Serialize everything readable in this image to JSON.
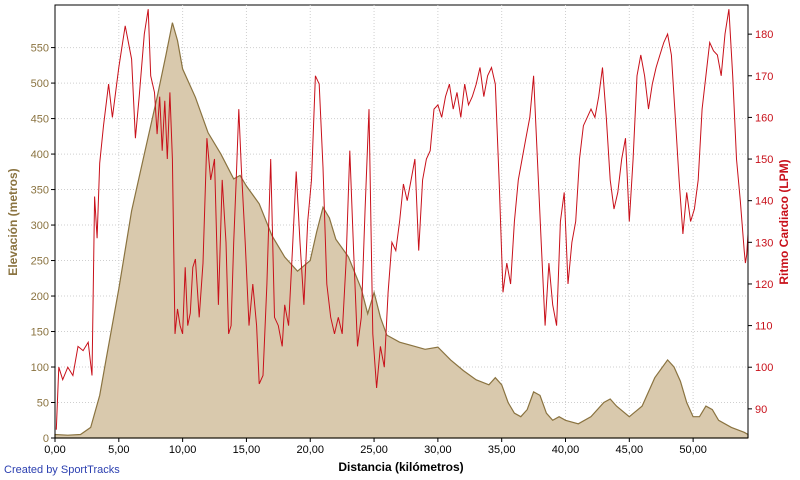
{
  "chart_data": {
    "type": "area",
    "xlabel": "Distancia (kilómetros)",
    "x_ticks": [
      "0,00",
      "5,00",
      "10,00",
      "15,00",
      "20,00",
      "25,00",
      "30,00",
      "35,00",
      "40,00",
      "45,00",
      "50,00"
    ],
    "xlim": [
      0,
      54.3
    ],
    "grid": true,
    "left_axis": {
      "label": "Elevación (metros)",
      "ticks": [
        0,
        50,
        100,
        150,
        200,
        250,
        300,
        350,
        400,
        450,
        500,
        550
      ],
      "ylim": [
        0,
        610
      ]
    },
    "right_axis": {
      "label": "Ritmo Cardiaco (LPM)",
      "ticks": [
        90,
        100,
        110,
        120,
        130,
        140,
        150,
        160,
        170,
        180
      ],
      "ylim": [
        83,
        187
      ]
    },
    "series": [
      {
        "type": "area",
        "axis": "left",
        "color": "#8a7340",
        "fill": "#d9c9ad",
        "points": [
          [
            0,
            5
          ],
          [
            1,
            4
          ],
          [
            2,
            5
          ],
          [
            2.8,
            15
          ],
          [
            3.5,
            60
          ],
          [
            4,
            110
          ],
          [
            5,
            210
          ],
          [
            6,
            320
          ],
          [
            7,
            400
          ],
          [
            8,
            480
          ],
          [
            8.7,
            540
          ],
          [
            9.2,
            585
          ],
          [
            9.6,
            560
          ],
          [
            10,
            520
          ],
          [
            11,
            480
          ],
          [
            12,
            430
          ],
          [
            13,
            400
          ],
          [
            14,
            365
          ],
          [
            14.5,
            370
          ],
          [
            15,
            355
          ],
          [
            16,
            330
          ],
          [
            17,
            285
          ],
          [
            18,
            255
          ],
          [
            19,
            235
          ],
          [
            20,
            250
          ],
          [
            20.5,
            290
          ],
          [
            21,
            325
          ],
          [
            21.5,
            310
          ],
          [
            22,
            280
          ],
          [
            23,
            255
          ],
          [
            24,
            210
          ],
          [
            24.5,
            175
          ],
          [
            25,
            205
          ],
          [
            25.5,
            170
          ],
          [
            26,
            145
          ],
          [
            27,
            135
          ],
          [
            28,
            130
          ],
          [
            29,
            125
          ],
          [
            30,
            128
          ],
          [
            31,
            110
          ],
          [
            32,
            95
          ],
          [
            33,
            82
          ],
          [
            34,
            75
          ],
          [
            34.5,
            85
          ],
          [
            35,
            75
          ],
          [
            35.5,
            50
          ],
          [
            36,
            35
          ],
          [
            36.5,
            30
          ],
          [
            37,
            40
          ],
          [
            37.5,
            65
          ],
          [
            38,
            60
          ],
          [
            38.5,
            35
          ],
          [
            39,
            25
          ],
          [
            39.5,
            30
          ],
          [
            40,
            25
          ],
          [
            41,
            20
          ],
          [
            42,
            30
          ],
          [
            43,
            50
          ],
          [
            43.5,
            55
          ],
          [
            44,
            45
          ],
          [
            45,
            30
          ],
          [
            46,
            45
          ],
          [
            47,
            85
          ],
          [
            48,
            110
          ],
          [
            48.5,
            100
          ],
          [
            49,
            80
          ],
          [
            49.5,
            50
          ],
          [
            50,
            30
          ],
          [
            50.5,
            30
          ],
          [
            51,
            45
          ],
          [
            51.5,
            40
          ],
          [
            52,
            25
          ],
          [
            53,
            15
          ],
          [
            54,
            8
          ],
          [
            54.3,
            5
          ]
        ]
      },
      {
        "type": "line",
        "axis": "right",
        "color": "#c8101a",
        "points": [
          [
            0.1,
            85
          ],
          [
            0.3,
            100
          ],
          [
            0.6,
            97
          ],
          [
            1,
            100
          ],
          [
            1.4,
            98
          ],
          [
            1.8,
            105
          ],
          [
            2.2,
            104
          ],
          [
            2.6,
            106
          ],
          [
            2.9,
            98
          ],
          [
            3.1,
            141
          ],
          [
            3.3,
            131
          ],
          [
            3.5,
            149
          ],
          [
            3.8,
            158
          ],
          [
            4.2,
            168
          ],
          [
            4.5,
            160
          ],
          [
            5,
            172
          ],
          [
            5.5,
            182
          ],
          [
            6,
            174
          ],
          [
            6.3,
            155
          ],
          [
            6.6,
            165
          ],
          [
            7,
            180
          ],
          [
            7.3,
            186
          ],
          [
            7.5,
            170
          ],
          [
            7.8,
            166
          ],
          [
            8,
            156
          ],
          [
            8.2,
            165
          ],
          [
            8.4,
            152
          ],
          [
            8.6,
            164
          ],
          [
            8.8,
            150
          ],
          [
            9,
            166
          ],
          [
            9.2,
            150
          ],
          [
            9.4,
            108
          ],
          [
            9.6,
            114
          ],
          [
            9.8,
            110
          ],
          [
            10,
            108
          ],
          [
            10.2,
            124
          ],
          [
            10.4,
            110
          ],
          [
            10.6,
            113
          ],
          [
            10.8,
            124
          ],
          [
            11,
            126
          ],
          [
            11.3,
            112
          ],
          [
            11.6,
            125
          ],
          [
            11.9,
            155
          ],
          [
            12.2,
            145
          ],
          [
            12.5,
            150
          ],
          [
            12.8,
            115
          ],
          [
            13.1,
            145
          ],
          [
            13.4,
            130
          ],
          [
            13.6,
            108
          ],
          [
            13.8,
            110
          ],
          [
            14,
            130
          ],
          [
            14.2,
            145
          ],
          [
            14.4,
            162
          ],
          [
            14.6,
            148
          ],
          [
            14.9,
            130
          ],
          [
            15.2,
            110
          ],
          [
            15.5,
            120
          ],
          [
            15.8,
            110
          ],
          [
            16,
            96
          ],
          [
            16.3,
            98
          ],
          [
            16.6,
            120
          ],
          [
            16.9,
            150
          ],
          [
            17.2,
            112
          ],
          [
            17.5,
            110
          ],
          [
            17.8,
            105
          ],
          [
            18,
            115
          ],
          [
            18.3,
            110
          ],
          [
            18.6,
            128
          ],
          [
            18.9,
            147
          ],
          [
            19.2,
            130
          ],
          [
            19.5,
            115
          ],
          [
            19.8,
            135
          ],
          [
            20.1,
            145
          ],
          [
            20.4,
            170
          ],
          [
            20.7,
            168
          ],
          [
            21,
            148
          ],
          [
            21.3,
            120
          ],
          [
            21.6,
            112
          ],
          [
            21.9,
            108
          ],
          [
            22.2,
            112
          ],
          [
            22.5,
            108
          ],
          [
            22.8,
            125
          ],
          [
            23.1,
            152
          ],
          [
            23.4,
            128
          ],
          [
            23.7,
            105
          ],
          [
            24,
            112
          ],
          [
            24.3,
            138
          ],
          [
            24.6,
            162
          ],
          [
            24.9,
            108
          ],
          [
            25.2,
            95
          ],
          [
            25.5,
            105
          ],
          [
            25.8,
            100
          ],
          [
            26.1,
            118
          ],
          [
            26.4,
            130
          ],
          [
            26.7,
            128
          ],
          [
            27,
            135
          ],
          [
            27.3,
            144
          ],
          [
            27.6,
            140
          ],
          [
            27.9,
            145
          ],
          [
            28.2,
            150
          ],
          [
            28.5,
            128
          ],
          [
            28.8,
            145
          ],
          [
            29.1,
            150
          ],
          [
            29.4,
            152
          ],
          [
            29.7,
            162
          ],
          [
            30,
            163
          ],
          [
            30.3,
            160
          ],
          [
            30.6,
            165
          ],
          [
            30.9,
            168
          ],
          [
            31.2,
            162
          ],
          [
            31.5,
            166
          ],
          [
            31.8,
            160
          ],
          [
            32.1,
            168
          ],
          [
            32.4,
            163
          ],
          [
            32.7,
            165
          ],
          [
            33,
            168
          ],
          [
            33.3,
            172
          ],
          [
            33.6,
            165
          ],
          [
            33.9,
            170
          ],
          [
            34.2,
            172
          ],
          [
            34.5,
            168
          ],
          [
            34.8,
            145
          ],
          [
            35.1,
            118
          ],
          [
            35.4,
            125
          ],
          [
            35.7,
            120
          ],
          [
            36,
            135
          ],
          [
            36.3,
            145
          ],
          [
            36.6,
            150
          ],
          [
            36.9,
            155
          ],
          [
            37.2,
            160
          ],
          [
            37.5,
            170
          ],
          [
            37.8,
            150
          ],
          [
            38.1,
            130
          ],
          [
            38.4,
            110
          ],
          [
            38.7,
            125
          ],
          [
            39,
            115
          ],
          [
            39.3,
            110
          ],
          [
            39.6,
            135
          ],
          [
            39.9,
            142
          ],
          [
            40.2,
            120
          ],
          [
            40.5,
            130
          ],
          [
            40.8,
            135
          ],
          [
            41.1,
            150
          ],
          [
            41.4,
            158
          ],
          [
            41.7,
            160
          ],
          [
            42,
            162
          ],
          [
            42.3,
            160
          ],
          [
            42.6,
            165
          ],
          [
            42.9,
            172
          ],
          [
            43.2,
            160
          ],
          [
            43.5,
            145
          ],
          [
            43.8,
            138
          ],
          [
            44.1,
            142
          ],
          [
            44.4,
            150
          ],
          [
            44.7,
            155
          ],
          [
            45,
            135
          ],
          [
            45.3,
            150
          ],
          [
            45.6,
            170
          ],
          [
            45.9,
            175
          ],
          [
            46.2,
            170
          ],
          [
            46.5,
            162
          ],
          [
            46.8,
            168
          ],
          [
            47.1,
            172
          ],
          [
            47.4,
            175
          ],
          [
            47.7,
            178
          ],
          [
            48,
            180
          ],
          [
            48.3,
            175
          ],
          [
            48.6,
            160
          ],
          [
            48.9,
            145
          ],
          [
            49.2,
            132
          ],
          [
            49.5,
            142
          ],
          [
            49.8,
            135
          ],
          [
            50.1,
            138
          ],
          [
            50.4,
            145
          ],
          [
            50.7,
            162
          ],
          [
            51,
            170
          ],
          [
            51.3,
            178
          ],
          [
            51.6,
            176
          ],
          [
            51.9,
            175
          ],
          [
            52.2,
            170
          ],
          [
            52.5,
            180
          ],
          [
            52.8,
            186
          ],
          [
            53.1,
            170
          ],
          [
            53.4,
            150
          ],
          [
            53.7,
            140
          ],
          [
            54,
            128
          ],
          [
            54.1,
            125
          ],
          [
            54.2,
            127
          ],
          [
            54.3,
            132
          ]
        ]
      }
    ]
  },
  "footer": {
    "credit": "Created by SportTracks"
  }
}
